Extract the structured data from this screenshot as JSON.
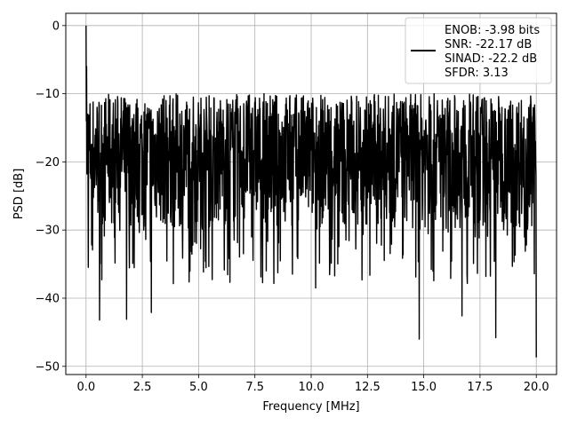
{
  "chart_data": {
    "type": "line",
    "title": "",
    "xlabel": "Frequency [MHz]",
    "ylabel": "PSD [dB]",
    "xlim": [
      -0.9,
      20.9
    ],
    "ylim": [
      -51.2,
      1.8
    ],
    "xticks": [
      0.0,
      2.5,
      5.0,
      7.5,
      10.0,
      12.5,
      15.0,
      17.5,
      20.0
    ],
    "xtick_labels": [
      "0.0",
      "2.5",
      "5.0",
      "7.5",
      "10.0",
      "12.5",
      "15.0",
      "17.5",
      "20.0"
    ],
    "yticks": [
      0,
      -10,
      -20,
      -30,
      -40,
      -50
    ],
    "ytick_labels": [
      "0",
      "−10",
      "−20",
      "−30",
      "−40",
      "−50"
    ],
    "grid": true,
    "legend_position": "top-right",
    "series": [
      {
        "name": "ENOB: -3.98 bits\nSNR: -22.17 dB\nSINAD: -22.2 dB\nSFDR: 3.13",
        "legend_lines": [
          "ENOB: -3.98 bits",
          "SNR: -22.17 dB",
          "SINAD: -22.2 dB",
          "SFDR: 3.13"
        ],
        "color": "#000000",
        "description": "dense noise-like PSD spanning 0 to 20 MHz",
        "x_range": [
          0.0,
          20.0
        ],
        "peak": {
          "x": 0.0,
          "y": 0.0
        },
        "upper_envelope_approx": -10,
        "lower_envelope_approx": -30,
        "deepest_points": [
          {
            "x": 0.6,
            "y": -43.2
          },
          {
            "x": 1.8,
            "y": -43.1
          },
          {
            "x": 2.9,
            "y": -42.1
          },
          {
            "x": 10.2,
            "y": -38.5
          },
          {
            "x": 14.8,
            "y": -46.0
          },
          {
            "x": 16.7,
            "y": -42.6
          },
          {
            "x": 18.2,
            "y": -45.8
          },
          {
            "x": 20.0,
            "y": -48.7
          }
        ]
      }
    ]
  }
}
